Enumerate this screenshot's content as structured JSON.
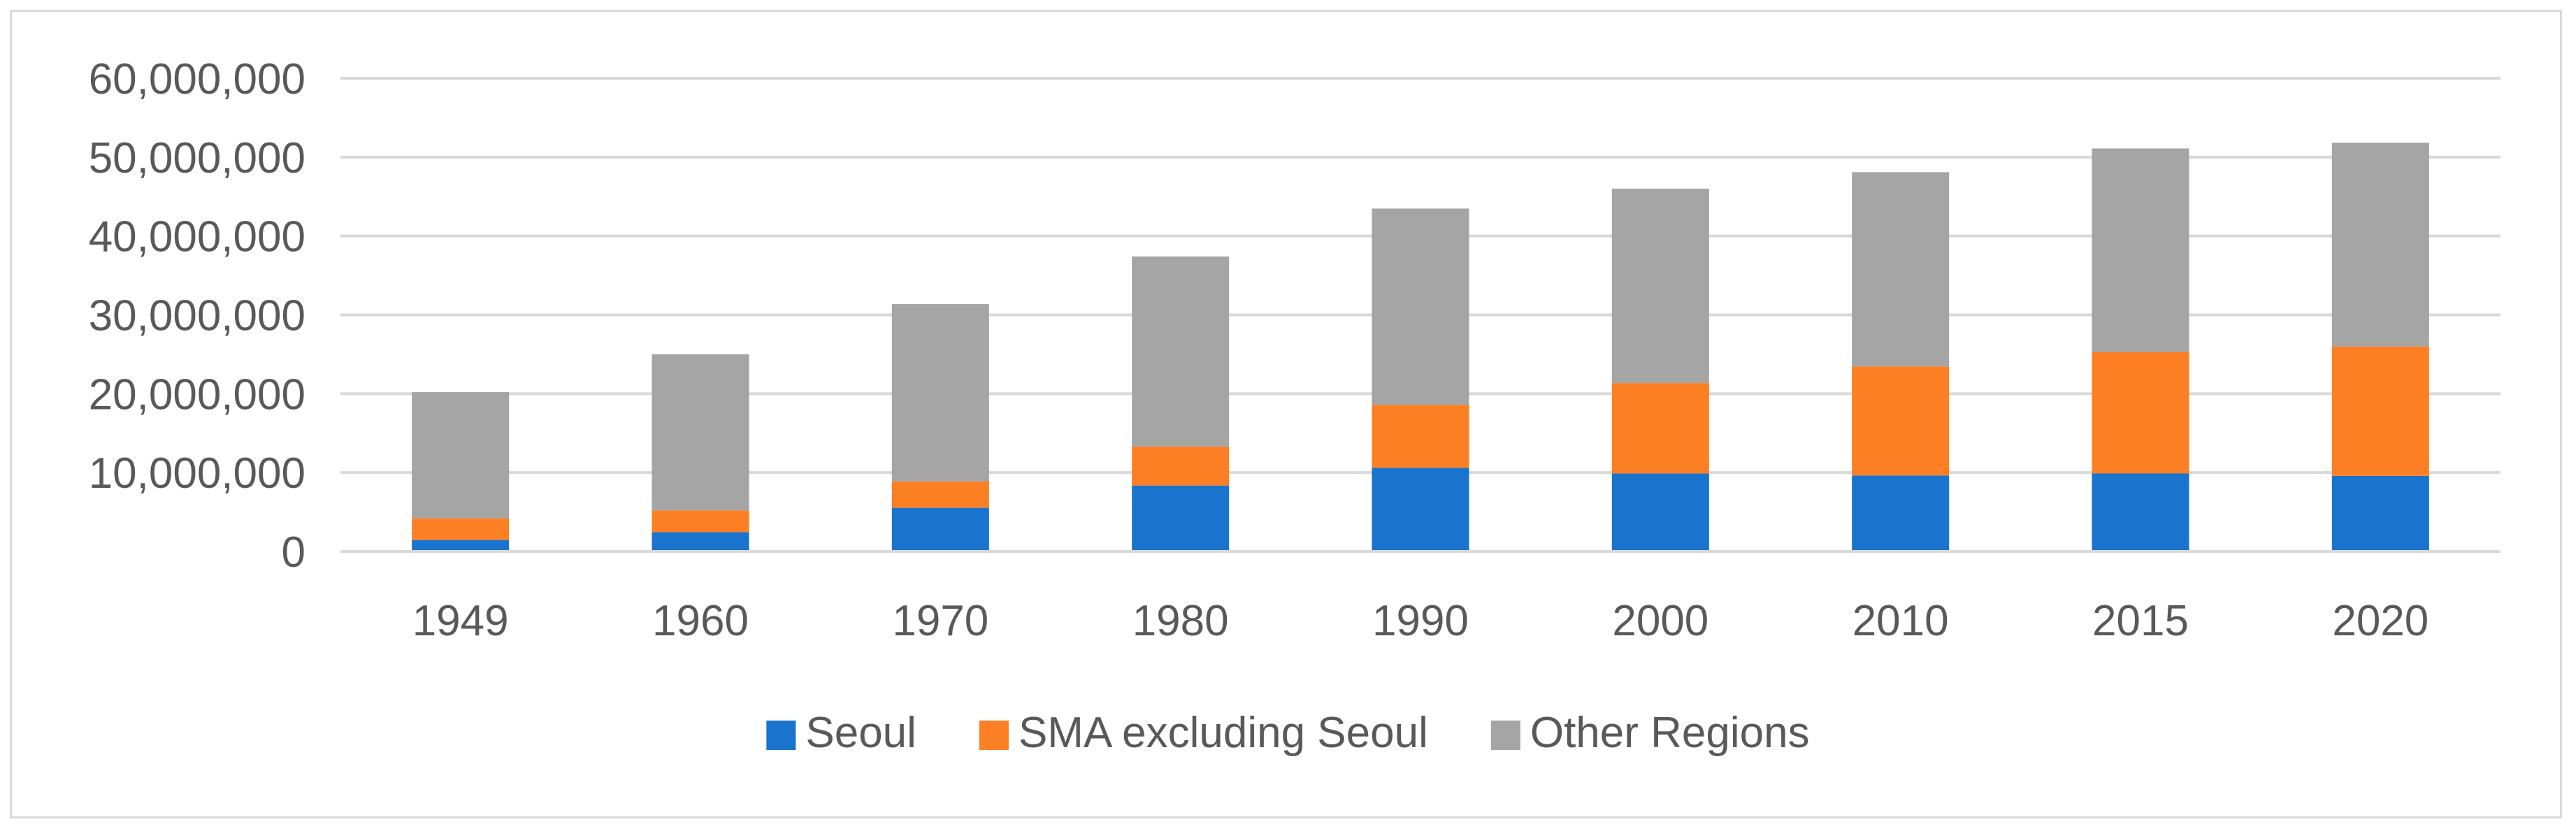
{
  "chart_data": {
    "type": "bar",
    "stacked": true,
    "categories": [
      "1949",
      "1960",
      "1970",
      "1980",
      "1990",
      "2000",
      "2010",
      "2015",
      "2020"
    ],
    "series": [
      {
        "name": "Seoul",
        "color": "#1a73cc",
        "values": [
          1450000,
          2450000,
          5530000,
          8360000,
          10610000,
          9890000,
          9630000,
          9900000,
          9590000
        ]
      },
      {
        "name": "SMA excluding Seoul",
        "color": "#fd7f23",
        "values": [
          2750000,
          2750000,
          3350000,
          4940000,
          7970000,
          11460000,
          13830000,
          15370000,
          16410000
        ]
      },
      {
        "name": "Other Regions",
        "color": "#a5a5a5",
        "values": [
          16000000,
          19800000,
          22500000,
          24100000,
          24900000,
          24650000,
          24630000,
          25830000,
          25830000
        ]
      }
    ],
    "title": "",
    "xlabel": "",
    "ylabel": "",
    "ylim": [
      0,
      60000000
    ],
    "y_ticks": [
      0,
      10000000,
      20000000,
      30000000,
      40000000,
      50000000,
      60000000
    ],
    "y_tick_labels": [
      "0",
      "10,000,000",
      "20,000,000",
      "30,000,000",
      "40,000,000",
      "50,000,000",
      "60,000,000"
    ],
    "grid": true,
    "legend_position": "bottom"
  }
}
